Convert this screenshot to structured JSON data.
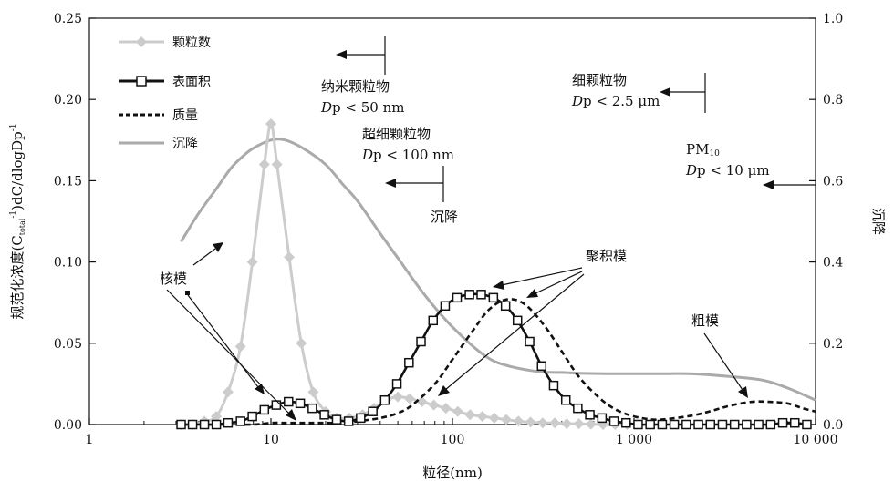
{
  "chart_data": {
    "type": "line",
    "xlabel": "粒径(nm)",
    "ylabel": "规范化浓度(C",
    "ylabel_sub": "total",
    "ylabel_sup": "-1",
    "ylabel_rest": ")dC/dlogDp",
    "ylabel_sup2": "-1",
    "y2label": "沉降",
    "x_scale": "log",
    "xlim": [
      1,
      10000
    ],
    "ylim": [
      0,
      0.25
    ],
    "y2lim": [
      0,
      1.0
    ],
    "x_ticks": [
      "1",
      "10",
      "100",
      "1 000",
      "10 000"
    ],
    "y_ticks": [
      "0.00",
      "0.05",
      "0.10",
      "0.15",
      "0.20",
      "0.25"
    ],
    "y2_ticks": [
      "0.0",
      "0.2",
      "0.4",
      "0.6",
      "0.8",
      "1.0"
    ],
    "legend_position": "top-left",
    "series": [
      {
        "name": "颗粒数",
        "color": "#cccccc",
        "marker": "diamond",
        "axis": "left",
        "x": [
          3.2,
          3.7,
          4.3,
          5.0,
          5.8,
          6.8,
          7.9,
          9.2,
          10.0,
          10.8,
          12.6,
          14.7,
          17.1,
          20,
          23,
          27,
          32,
          37,
          43,
          50,
          58,
          68,
          79,
          92,
          107,
          125,
          146,
          170,
          198,
          231,
          269,
          314,
          366,
          426,
          497,
          579,
          675,
          787,
          917
        ],
        "y": [
          0.0,
          0.0,
          0.002,
          0.005,
          0.02,
          0.048,
          0.1,
          0.16,
          0.185,
          0.16,
          0.103,
          0.05,
          0.02,
          0.008,
          0.004,
          0.004,
          0.006,
          0.01,
          0.015,
          0.017,
          0.016,
          0.014,
          0.012,
          0.01,
          0.008,
          0.006,
          0.005,
          0.004,
          0.003,
          0.002,
          0.0015,
          0.001,
          0.001,
          0.0005,
          0.0005,
          0.0002,
          0.0,
          0.0,
          0.0
        ]
      },
      {
        "name": "表面积",
        "color": "#111111",
        "marker": "square",
        "axis": "left",
        "x": [
          3.2,
          3.7,
          4.3,
          5.0,
          5.8,
          6.8,
          7.9,
          9.2,
          10.7,
          12.5,
          14.5,
          16.9,
          19.7,
          23.0,
          26.8,
          31.2,
          36.4,
          42.4,
          49.4,
          57.6,
          67.1,
          78.2,
          91.1,
          106,
          124,
          144,
          168,
          196,
          228,
          266,
          310,
          361,
          421,
          490,
          571,
          666,
          776,
          904,
          1053,
          1227,
          1430,
          1666,
          1941,
          2262,
          2636,
          3071,
          3578,
          4169,
          4858,
          5660,
          6596,
          7685,
          8955
        ],
        "y": [
          0.0,
          0.0,
          0.0,
          0.0,
          0.001,
          0.002,
          0.005,
          0.009,
          0.012,
          0.014,
          0.013,
          0.01,
          0.006,
          0.003,
          0.002,
          0.004,
          0.008,
          0.015,
          0.025,
          0.038,
          0.051,
          0.064,
          0.073,
          0.078,
          0.08,
          0.08,
          0.078,
          0.073,
          0.064,
          0.051,
          0.036,
          0.024,
          0.015,
          0.01,
          0.006,
          0.004,
          0.002,
          0.001,
          0.0,
          0.0,
          0.0,
          0.0,
          0.0,
          0.0,
          0.0,
          0.0,
          0.0,
          0.0,
          0.0,
          0.0,
          0.001,
          0.001,
          0.0
        ]
      },
      {
        "name": "质量",
        "color": "#111111",
        "dash": true,
        "axis": "left",
        "x": [
          3.2,
          5,
          8,
          10,
          12,
          15,
          20,
          25,
          30,
          40,
          50,
          60,
          80,
          100,
          130,
          160,
          200,
          250,
          320,
          400,
          500,
          650,
          800,
          1000,
          1300,
          1700,
          2200,
          2800,
          3500,
          4500,
          5500,
          7000,
          8500,
          10000
        ],
        "y": [
          0.0,
          0.0,
          0.0,
          0.001,
          0.001,
          0.001,
          0.001,
          0.001,
          0.002,
          0.004,
          0.007,
          0.012,
          0.025,
          0.04,
          0.058,
          0.071,
          0.077,
          0.074,
          0.061,
          0.045,
          0.029,
          0.016,
          0.009,
          0.005,
          0.003,
          0.004,
          0.006,
          0.009,
          0.012,
          0.014,
          0.014,
          0.013,
          0.01,
          0.008
        ]
      },
      {
        "name": "沉降",
        "color": "#aaaaaa",
        "axis": "right",
        "x": [
          3.2,
          4,
          5,
          6,
          7,
          8,
          10,
          12,
          15,
          20,
          25,
          30,
          40,
          50,
          70,
          100,
          150,
          200,
          300,
          400,
          500,
          700,
          1000,
          1500,
          2000,
          3000,
          5000,
          7000,
          10000
        ],
        "y": [
          0.45,
          0.52,
          0.58,
          0.63,
          0.66,
          0.68,
          0.7,
          0.7,
          0.68,
          0.64,
          0.59,
          0.55,
          0.47,
          0.41,
          0.32,
          0.24,
          0.17,
          0.145,
          0.13,
          0.128,
          0.126,
          0.125,
          0.125,
          0.125,
          0.125,
          0.12,
          0.11,
          0.09,
          0.06
        ]
      }
    ],
    "annotations": {
      "nano": "纳米颗粒物",
      "nano_dp": "p <  50 nm",
      "ultra": "超细颗粒物",
      "ultra_dp": "p <  100 nm",
      "settle": "沉降",
      "fine": "细颗粒物",
      "fine_dp": "p < 2.5 μm",
      "pm10": "PM",
      "pm10_sub": "10",
      "pm10_dp": "p < 10 μm",
      "dp_prefix": "D",
      "nucleation": "核模",
      "accumulation": "聚积模",
      "coarse": "粗模"
    }
  }
}
